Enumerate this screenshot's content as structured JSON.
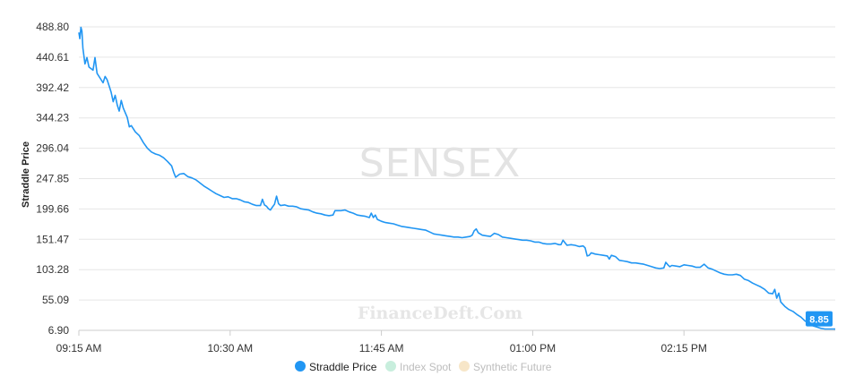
{
  "chart_data": {
    "type": "line",
    "title": "",
    "xlabel": "",
    "ylabel": "Straddle Price",
    "ylim": [
      6.9,
      488.8
    ],
    "y_ticks": [
      "488.80",
      "440.61",
      "392.42",
      "344.23",
      "296.04",
      "247.85",
      "199.66",
      "151.47",
      "103.28",
      "55.09",
      "6.90"
    ],
    "x_ticks": [
      "09:15 AM",
      "10:30 AM",
      "11:45 AM",
      "01:00 PM",
      "02:15 PM"
    ],
    "x_range_minutes": [
      0,
      375
    ],
    "x_tick_minutes": [
      0,
      75,
      150,
      225,
      300
    ],
    "series": [
      {
        "name": "Straddle Price",
        "color": "#2196f3",
        "last_value_label": "8.85",
        "points": [
          [
            0,
            480
          ],
          [
            0.5,
            470
          ],
          [
            1,
            488
          ],
          [
            1.5,
            482
          ],
          [
            2,
            455
          ],
          [
            3,
            430
          ],
          [
            4,
            440
          ],
          [
            5,
            425
          ],
          [
            7,
            420
          ],
          [
            8,
            440
          ],
          [
            9,
            415
          ],
          [
            11,
            405
          ],
          [
            12,
            400
          ],
          [
            13,
            410
          ],
          [
            14,
            405
          ],
          [
            15,
            395
          ],
          [
            16,
            385
          ],
          [
            17,
            370
          ],
          [
            18,
            380
          ],
          [
            19,
            365
          ],
          [
            20,
            355
          ],
          [
            21,
            372
          ],
          [
            22,
            360
          ],
          [
            24,
            345
          ],
          [
            25,
            330
          ],
          [
            26,
            332
          ],
          [
            28,
            322
          ],
          [
            30,
            316
          ],
          [
            32,
            305
          ],
          [
            34,
            296
          ],
          [
            36,
            290
          ],
          [
            38,
            287
          ],
          [
            40,
            285
          ],
          [
            42,
            281
          ],
          [
            44,
            275
          ],
          [
            46,
            268
          ],
          [
            47,
            258
          ],
          [
            48,
            250
          ],
          [
            50,
            255
          ],
          [
            52,
            256
          ],
          [
            54,
            251
          ],
          [
            56,
            249
          ],
          [
            58,
            246
          ],
          [
            60,
            241
          ],
          [
            62,
            236
          ],
          [
            64,
            232
          ],
          [
            66,
            228
          ],
          [
            68,
            224
          ],
          [
            70,
            221
          ],
          [
            72,
            218
          ],
          [
            74,
            219
          ],
          [
            76,
            216
          ],
          [
            78,
            216
          ],
          [
            80,
            214
          ],
          [
            82,
            211
          ],
          [
            84,
            210
          ],
          [
            86,
            207
          ],
          [
            88,
            205
          ],
          [
            90,
            205
          ],
          [
            91,
            215
          ],
          [
            92,
            206
          ],
          [
            93,
            204
          ],
          [
            94,
            200
          ],
          [
            95,
            198
          ],
          [
            96,
            203
          ],
          [
            97,
            207
          ],
          [
            98,
            220
          ],
          [
            99,
            208
          ],
          [
            100,
            205
          ],
          [
            102,
            206
          ],
          [
            104,
            204
          ],
          [
            106,
            204
          ],
          [
            108,
            203
          ],
          [
            110,
            200
          ],
          [
            112,
            199
          ],
          [
            114,
            198
          ],
          [
            116,
            195
          ],
          [
            118,
            193
          ],
          [
            120,
            192
          ],
          [
            122,
            190
          ],
          [
            124,
            189
          ],
          [
            126,
            190
          ],
          [
            127,
            197
          ],
          [
            128,
            197
          ],
          [
            130,
            197
          ],
          [
            132,
            198
          ],
          [
            134,
            195
          ],
          [
            136,
            193
          ],
          [
            138,
            190
          ],
          [
            140,
            189
          ],
          [
            142,
            188
          ],
          [
            144,
            186
          ],
          [
            145,
            193
          ],
          [
            146,
            186
          ],
          [
            147,
            190
          ],
          [
            148,
            183
          ],
          [
            150,
            180
          ],
          [
            152,
            178
          ],
          [
            154,
            177
          ],
          [
            156,
            176
          ],
          [
            158,
            174
          ],
          [
            160,
            172
          ],
          [
            162,
            171
          ],
          [
            164,
            170
          ],
          [
            166,
            169
          ],
          [
            168,
            168
          ],
          [
            170,
            167
          ],
          [
            172,
            166
          ],
          [
            174,
            163
          ],
          [
            176,
            160
          ],
          [
            178,
            159
          ],
          [
            180,
            158
          ],
          [
            182,
            157
          ],
          [
            184,
            156
          ],
          [
            186,
            155
          ],
          [
            188,
            155
          ],
          [
            190,
            154
          ],
          [
            192,
            155
          ],
          [
            194,
            156
          ],
          [
            195,
            158
          ],
          [
            196,
            165
          ],
          [
            197,
            168
          ],
          [
            198,
            162
          ],
          [
            200,
            158
          ],
          [
            202,
            157
          ],
          [
            204,
            156
          ],
          [
            206,
            161
          ],
          [
            208,
            159
          ],
          [
            210,
            155
          ],
          [
            212,
            154
          ],
          [
            214,
            153
          ],
          [
            216,
            152
          ],
          [
            218,
            151
          ],
          [
            220,
            150
          ],
          [
            222,
            150
          ],
          [
            224,
            149
          ],
          [
            226,
            147
          ],
          [
            228,
            147
          ],
          [
            230,
            145
          ],
          [
            232,
            144
          ],
          [
            234,
            144
          ],
          [
            236,
            145
          ],
          [
            238,
            143
          ],
          [
            239,
            143
          ],
          [
            240,
            150
          ],
          [
            241,
            146
          ],
          [
            242,
            142
          ],
          [
            244,
            143
          ],
          [
            246,
            142
          ],
          [
            248,
            140
          ],
          [
            250,
            141
          ],
          [
            251,
            138
          ],
          [
            252,
            125
          ],
          [
            253,
            126
          ],
          [
            254,
            130
          ],
          [
            256,
            128
          ],
          [
            258,
            127
          ],
          [
            260,
            126
          ],
          [
            262,
            125
          ],
          [
            263,
            120
          ],
          [
            264,
            126
          ],
          [
            266,
            124
          ],
          [
            268,
            118
          ],
          [
            270,
            117
          ],
          [
            272,
            116
          ],
          [
            274,
            114
          ],
          [
            276,
            114
          ],
          [
            278,
            113
          ],
          [
            280,
            112
          ],
          [
            282,
            110
          ],
          [
            284,
            108
          ],
          [
            286,
            106
          ],
          [
            288,
            105
          ],
          [
            290,
            106
          ],
          [
            291,
            115
          ],
          [
            292,
            111
          ],
          [
            293,
            108
          ],
          [
            294,
            110
          ],
          [
            296,
            109
          ],
          [
            298,
            108
          ],
          [
            300,
            111
          ],
          [
            302,
            110
          ],
          [
            304,
            109
          ],
          [
            306,
            107
          ],
          [
            308,
            107
          ],
          [
            310,
            112
          ],
          [
            312,
            106
          ],
          [
            314,
            104
          ],
          [
            316,
            101
          ],
          [
            318,
            98
          ],
          [
            320,
            96
          ],
          [
            322,
            95
          ],
          [
            324,
            95
          ],
          [
            326,
            96
          ],
          [
            328,
            94
          ],
          [
            330,
            88
          ],
          [
            332,
            86
          ],
          [
            334,
            82
          ],
          [
            336,
            79
          ],
          [
            338,
            76
          ],
          [
            340,
            72
          ],
          [
            342,
            66
          ],
          [
            344,
            65
          ],
          [
            345,
            72
          ],
          [
            346,
            58
          ],
          [
            347,
            66
          ],
          [
            348,
            52
          ],
          [
            350,
            45
          ],
          [
            352,
            40
          ],
          [
            354,
            37
          ],
          [
            356,
            32
          ],
          [
            358,
            28
          ],
          [
            360,
            22
          ],
          [
            362,
            18
          ],
          [
            364,
            14
          ],
          [
            366,
            12
          ],
          [
            368,
            10
          ],
          [
            370,
            9
          ],
          [
            372,
            9
          ],
          [
            374,
            9
          ],
          [
            375,
            8.85
          ]
        ]
      },
      {
        "name": "Index Spot",
        "color": "#c8eedd",
        "points": []
      },
      {
        "name": "Synthetic Future",
        "color": "#f7e6c8",
        "points": []
      }
    ],
    "legend_position": "bottom-center",
    "watermark": "SENSEX",
    "watermark_secondary": "FinanceDeft.Com"
  },
  "colors": {
    "grid": "#e6e6e6",
    "axis": "#cccccc",
    "line": "#2196f3"
  }
}
